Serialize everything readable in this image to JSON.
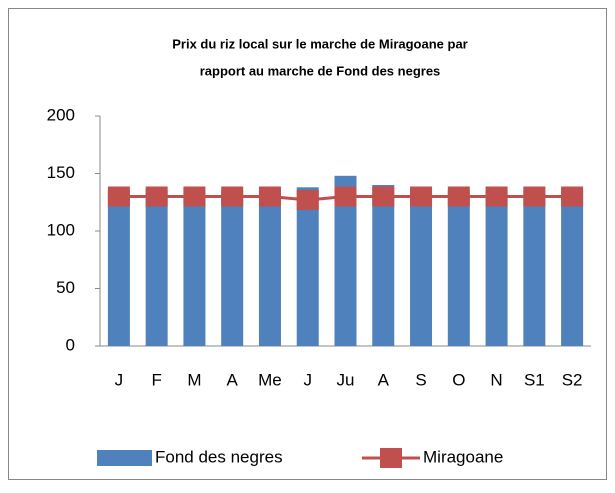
{
  "chart_data": {
    "type": "bar_line",
    "title": [
      "Prix du riz local sur le marche de Miragoane par",
      "rapport au marche de Fond des negres"
    ],
    "categories": [
      "J",
      "F",
      "M",
      "A",
      "Me",
      "J",
      "Ju",
      "A",
      "S",
      "O",
      "N",
      "S1",
      "S2"
    ],
    "series": [
      {
        "name": "Fond des negres",
        "type": "bar",
        "color": "#4f81bd",
        "values": [
          135,
          135,
          135,
          135,
          135,
          138,
          148,
          140,
          135,
          135,
          135,
          135,
          135
        ]
      },
      {
        "name": "Miragoane",
        "type": "line",
        "color": "#c0504d",
        "values": [
          130,
          130,
          130,
          130,
          130,
          127,
          130,
          130,
          130,
          130,
          130,
          130,
          130
        ]
      }
    ],
    "ylim": [
      0,
      200
    ],
    "yticks": [
      0,
      50,
      100,
      150,
      200
    ],
    "grid": false,
    "legend": "bottom"
  }
}
